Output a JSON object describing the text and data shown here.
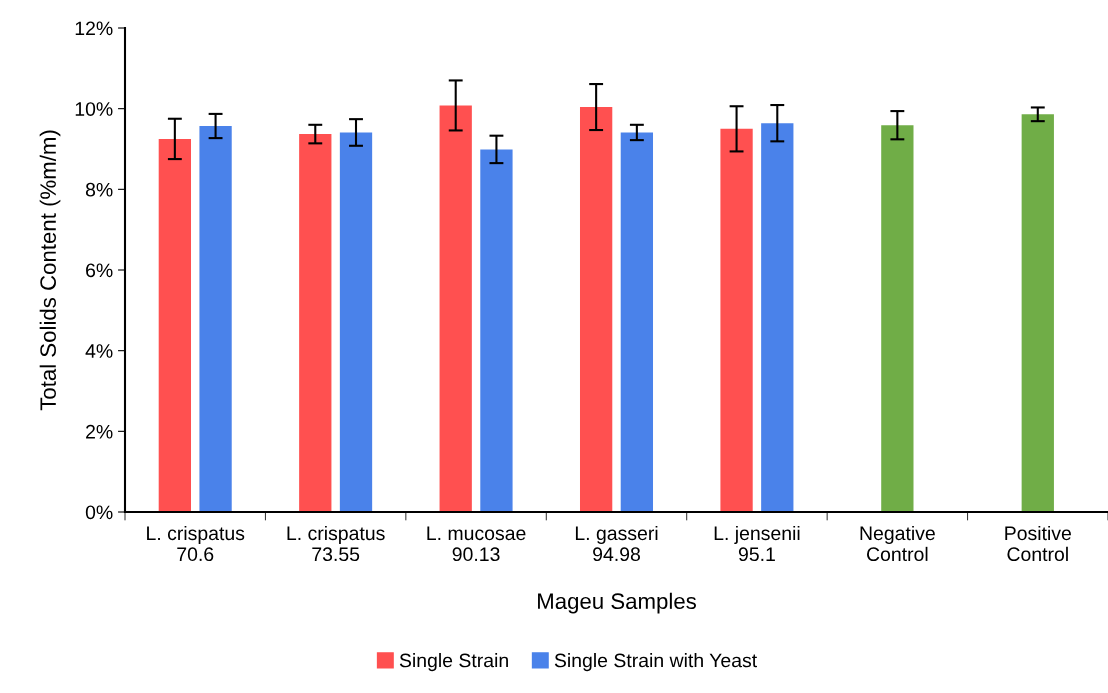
{
  "chart_data": {
    "type": "bar",
    "xlabel": "Mageu Samples",
    "ylabel": "Total Solids Content (%m/m)",
    "categories": [
      "L. crispatus\n70.6",
      "L. crispatus\n73.55",
      "L. mucosae\n90.13",
      "L. gasseri\n94.98",
      "L. jensenii\n95.1",
      "Negative\nControl",
      "Positive\nControl"
    ],
    "series": [
      {
        "name": "Single Strain",
        "color": "#ff5050",
        "values": [
          9.25,
          9.37,
          10.08,
          10.04,
          9.5,
          null,
          null
        ],
        "errors": [
          0.5,
          0.23,
          0.62,
          0.57,
          0.56,
          null,
          null
        ]
      },
      {
        "name": "Single Strain with Yeast",
        "color": "#4a82ea",
        "values": [
          9.57,
          9.41,
          8.99,
          9.41,
          9.64,
          null,
          null
        ],
        "errors": [
          0.3,
          0.33,
          0.34,
          0.19,
          0.45,
          null,
          null
        ]
      },
      {
        "color": "#70ad47",
        "values": [
          null,
          null,
          null,
          null,
          null,
          9.59,
          9.86
        ],
        "errors": [
          null,
          null,
          null,
          null,
          null,
          0.35,
          0.17
        ]
      }
    ],
    "ylim": [
      0,
      12
    ],
    "yticks": [
      {
        "value": 0,
        "label": "0%"
      },
      {
        "value": 2,
        "label": "2%"
      },
      {
        "value": 4,
        "label": "4%"
      },
      {
        "value": 6,
        "label": "6%"
      },
      {
        "value": 8,
        "label": "8%"
      },
      {
        "value": 10,
        "label": "10%"
      },
      {
        "value": 12,
        "label": "12%"
      }
    ],
    "grid": false,
    "legend": "bottom"
  }
}
